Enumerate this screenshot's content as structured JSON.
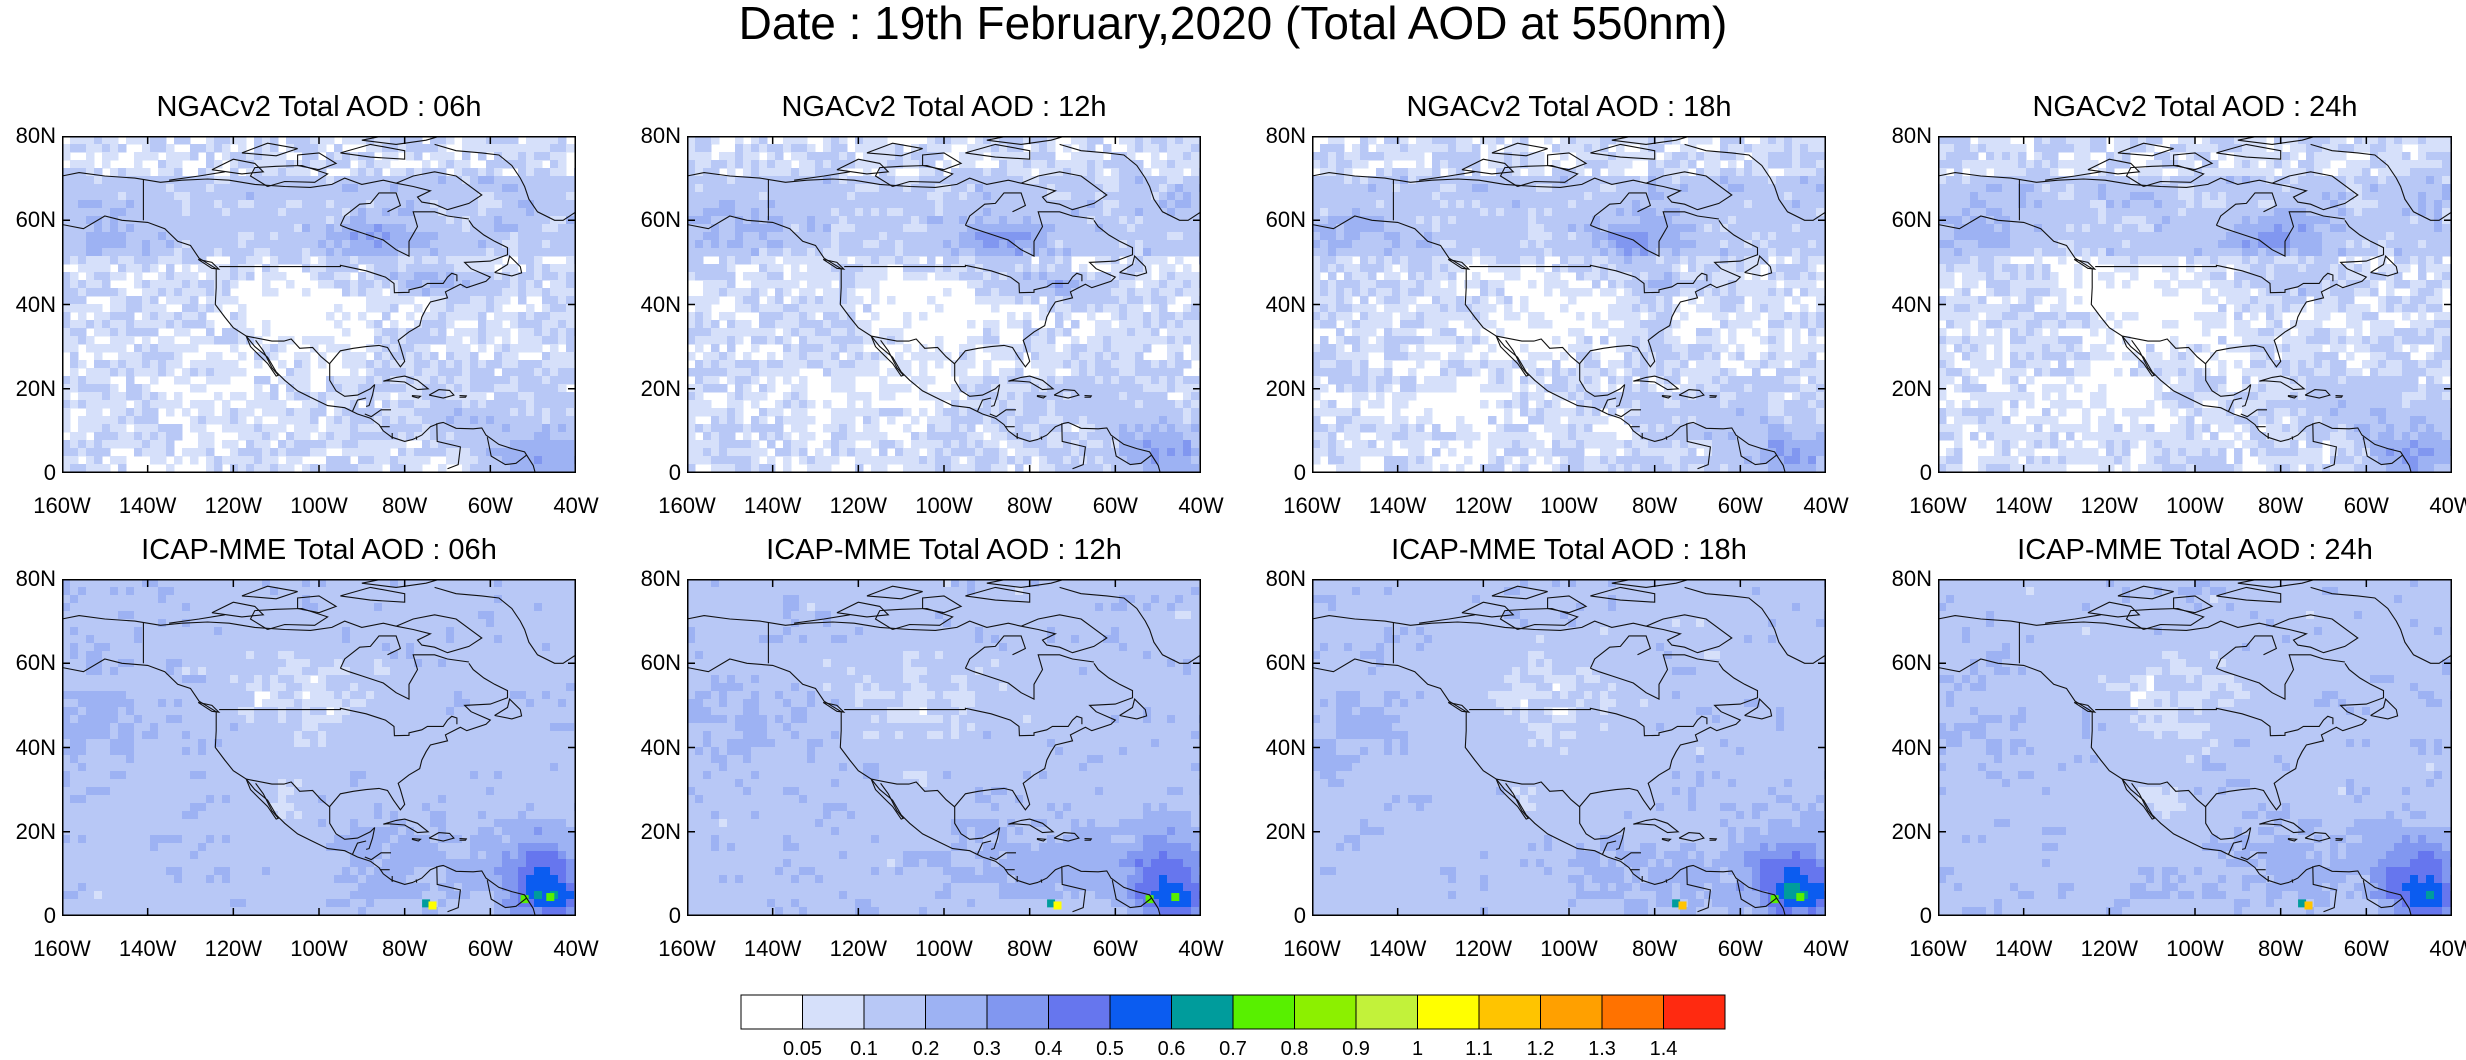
{
  "title": "Date : 19th February,2020 (Total AOD at 550nm)",
  "panels": [
    {
      "title": "NGACv2 Total AOD : 06h",
      "row": 0,
      "col": 0,
      "model": "ngac"
    },
    {
      "title": "NGACv2 Total AOD : 12h",
      "row": 0,
      "col": 1,
      "model": "ngac"
    },
    {
      "title": "NGACv2 Total AOD : 18h",
      "row": 0,
      "col": 2,
      "model": "ngac"
    },
    {
      "title": "NGACv2 Total AOD : 24h",
      "row": 0,
      "col": 3,
      "model": "ngac"
    },
    {
      "title": "ICAP-MME Total AOD : 06h",
      "row": 1,
      "col": 0,
      "model": "icap"
    },
    {
      "title": "ICAP-MME Total AOD : 12h",
      "row": 1,
      "col": 1,
      "model": "icap"
    },
    {
      "title": "ICAP-MME Total AOD : 18h",
      "row": 1,
      "col": 2,
      "model": "icap"
    },
    {
      "title": "ICAP-MME Total AOD : 24h",
      "row": 1,
      "col": 3,
      "model": "icap"
    }
  ],
  "lat_ticks": [
    "80N",
    "60N",
    "40N",
    "20N",
    "0"
  ],
  "lon_ticks": [
    "160W",
    "140W",
    "120W",
    "100W",
    "80W",
    "60W",
    "40W"
  ],
  "colorbar": {
    "labels": [
      "0.05",
      "0.1",
      "0.2",
      "0.3",
      "0.4",
      "0.5",
      "0.6",
      "0.7",
      "0.8",
      "0.9",
      "1",
      "1.1",
      "1.2",
      "1.3",
      "1.4"
    ],
    "colors": [
      "#ffffff",
      "#d6e0fa",
      "#b8c8f6",
      "#9db2f3",
      "#8197f0",
      "#6676ee",
      "#0b5cf0",
      "#009c9c",
      "#58f000",
      "#8cf000",
      "#c2f23a",
      "#ffff00",
      "#ffc400",
      "#ffa000",
      "#ff7200",
      "#ff2a10"
    ]
  }
}
